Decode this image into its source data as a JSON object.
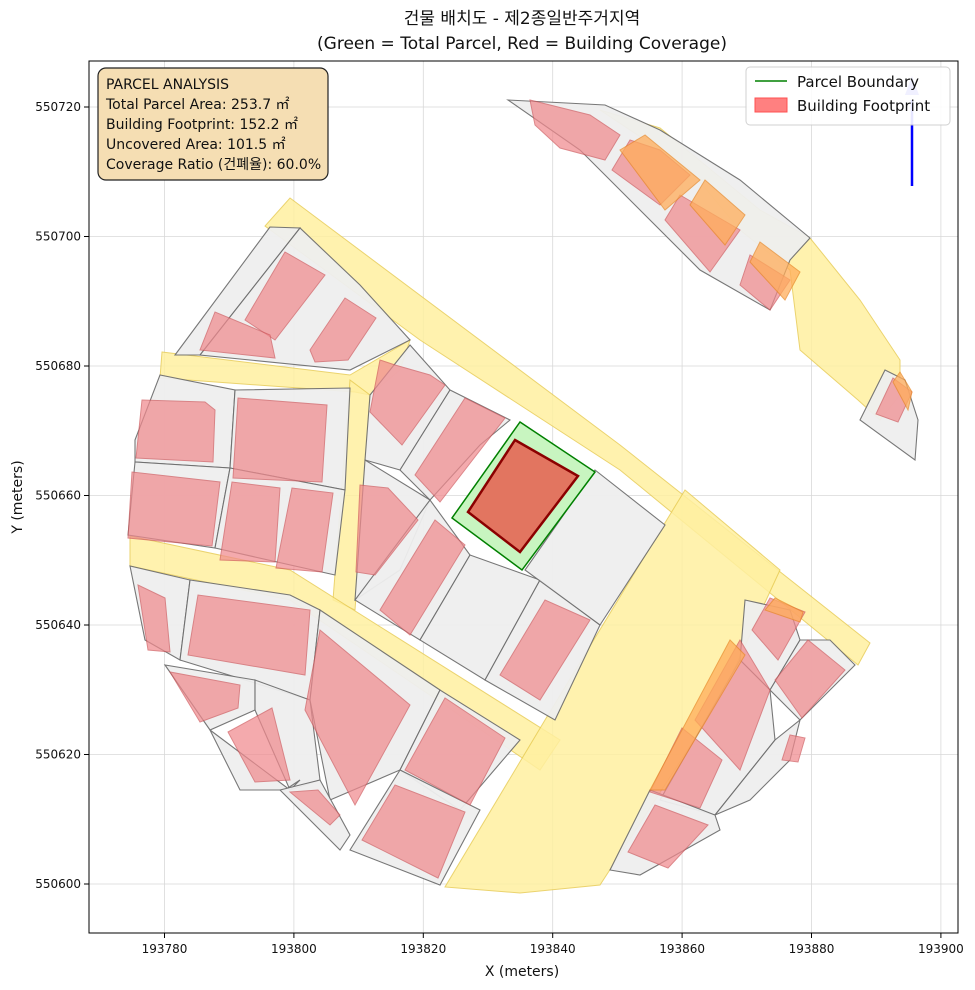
{
  "title_line1": "건물 배치도 - 제2종일반주거지역",
  "title_line2": "(Green = Total Parcel, Red = Building Coverage)",
  "x_axis": {
    "label": "X (meters)",
    "ticks": [
      {
        "value": 193780,
        "label": "193780"
      },
      {
        "value": 193800,
        "label": "193800"
      },
      {
        "value": 193820,
        "label": "193820"
      },
      {
        "value": 193840,
        "label": "193840"
      },
      {
        "value": 193860,
        "label": "193860"
      },
      {
        "value": 193880,
        "label": "193880"
      },
      {
        "value": 193900,
        "label": "193900"
      }
    ]
  },
  "y_axis": {
    "label": "Y (meters)",
    "ticks": [
      {
        "value": 550600,
        "label": "550600"
      },
      {
        "value": 550620,
        "label": "550620"
      },
      {
        "value": 550640,
        "label": "550640"
      },
      {
        "value": 550660,
        "label": "550660"
      },
      {
        "value": 550680,
        "label": "550680"
      },
      {
        "value": 550700,
        "label": "550700"
      },
      {
        "value": 550720,
        "label": "550720"
      }
    ]
  },
  "info_box": {
    "line1": "PARCEL ANALYSIS",
    "line2": "Total Parcel Area: 253.7 ㎡",
    "line3": "Building Footprint: 152.2 ㎡",
    "line4": "Uncovered Area: 101.5 ㎡",
    "line5": "Coverage Ratio (건폐율): 60.0%"
  },
  "legend": {
    "parcel_boundary": "Parcel Boundary",
    "building_footprint": "Building Footprint"
  },
  "colors": {
    "parcel_boundary": "#008000",
    "parcel_fill": "#c8f5c0",
    "building_fill": "#e27560",
    "building_edge": "#8b0000",
    "road": "#fff0a0",
    "north_arrow": "#0000ff"
  }
}
